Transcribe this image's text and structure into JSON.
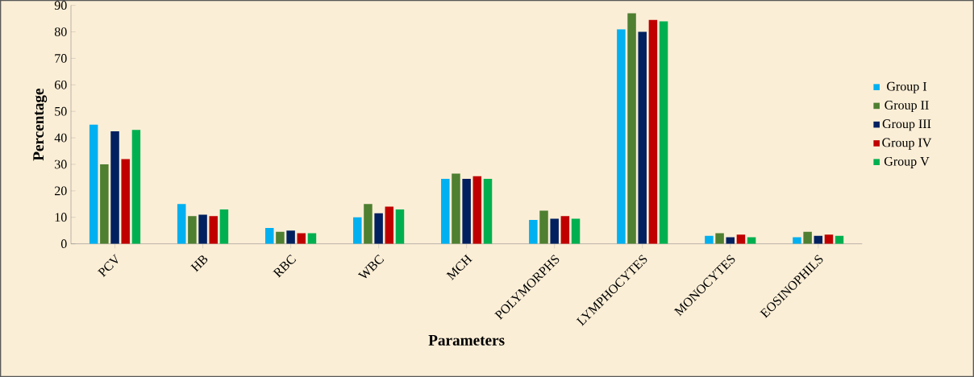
{
  "chart_data": {
    "type": "bar",
    "xlabel": "Parameters",
    "ylabel": "Percentage",
    "categories": [
      "PCV",
      "HB",
      "RBC",
      "WBC",
      "MCH",
      "POLYMORPHS",
      "LYMPHOCYTES",
      "MONOCYTES",
      "EOSINOPHILS"
    ],
    "series": [
      {
        "name": "Group I",
        "color": "#00b0f0",
        "values": [
          45,
          15,
          6,
          10,
          24.5,
          9,
          81,
          3,
          2.5
        ]
      },
      {
        "name": "Group II",
        "color": "#4f7f31",
        "values": [
          30,
          10.5,
          4.5,
          15,
          26.5,
          12.5,
          87,
          4,
          4.5
        ]
      },
      {
        "name": "Group III",
        "color": "#002060",
        "values": [
          42.5,
          11,
          5,
          11.5,
          24.5,
          9.5,
          80,
          2.5,
          3
        ]
      },
      {
        "name": "Group IV",
        "color": "#c00000",
        "values": [
          32,
          10.5,
          4,
          14,
          25.5,
          10.5,
          84.5,
          3.5,
          3.5
        ]
      },
      {
        "name": "Group V",
        "color": "#00b050",
        "values": [
          43,
          13,
          4,
          13,
          24.5,
          9.5,
          84,
          2.5,
          3
        ]
      }
    ],
    "ylim": [
      0,
      90
    ],
    "yticks": [
      0,
      10,
      20,
      30,
      40,
      50,
      60,
      70,
      80,
      90
    ],
    "grid": false,
    "legend": "right"
  }
}
